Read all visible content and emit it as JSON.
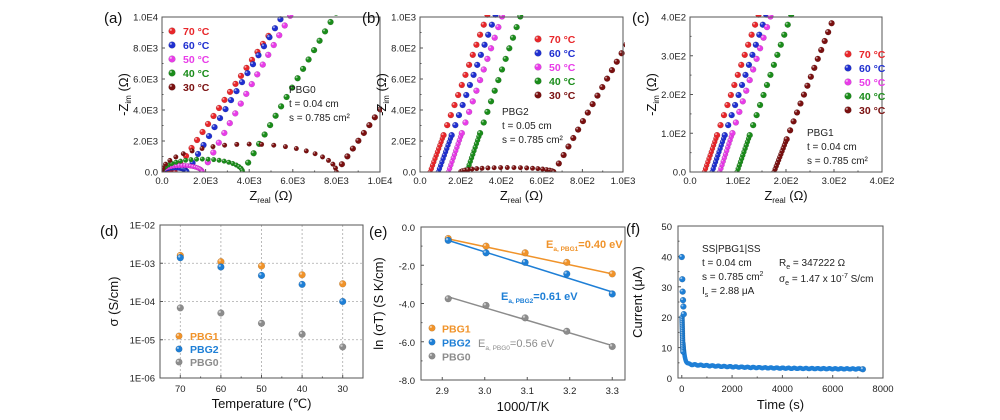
{
  "chart_data": [
    {
      "id": "a",
      "panel_label": "(a)",
      "type": "scatter",
      "title": "",
      "xlabel": "Z",
      "xlabel_sub": "real",
      "xlabel_unit": " (Ω)",
      "ylabel": "-Z",
      "ylabel_sub": "im",
      "ylabel_unit": " (Ω)",
      "xlim": [
        0,
        10000
      ],
      "ylim": [
        0,
        10000
      ],
      "xticks": [
        "0.0",
        "2.0E3",
        "4.0E3",
        "6.0E3",
        "8.0E3",
        "1.0E4"
      ],
      "yticks": [
        "0.0",
        "2.0E3",
        "4.0E3",
        "6.0E3",
        "8.0E3",
        "1.0E4"
      ],
      "legend_position": "top-left",
      "annotation": [
        "PBG0",
        "t = 0.04 cm",
        "s = 0.785 cm²"
      ],
      "series": [
        {
          "name": "70 °C",
          "color": "#e8262a",
          "R0": 0,
          "Rb": 600,
          "slope": 2.05
        },
        {
          "name": "60 °C",
          "color": "#1f2fd0",
          "R0": 0,
          "Rb": 1150,
          "slope": 2.3
        },
        {
          "name": "50 °C",
          "color": "#e83ce8",
          "R0": 0,
          "Rb": 1850,
          "slope": 2.5
        },
        {
          "name": "40 °C",
          "color": "#1a8c1a",
          "R0": 0,
          "Rb": 3700,
          "slope": 2.4
        },
        {
          "name": "30 °C",
          "color": "#7a1010",
          "R0": 0,
          "Rb": 8000,
          "slope": 2.0
        }
      ]
    },
    {
      "id": "b",
      "panel_label": "(b)",
      "type": "scatter",
      "xlabel": "Z",
      "xlabel_sub": "real",
      "xlabel_unit": " (Ω)",
      "ylabel": "-Z",
      "ylabel_sub": "im",
      "ylabel_unit": " (Ω)",
      "xlim": [
        0,
        1000
      ],
      "ylim": [
        0,
        1000
      ],
      "xticks": [
        "0.0",
        "2.0E2",
        "4.0E2",
        "6.0E2",
        "8.0E2",
        "1.0E3"
      ],
      "yticks": [
        "0.0",
        "2.0E2",
        "4.0E2",
        "6.0E2",
        "8.0E2",
        "1.0E3"
      ],
      "legend_position": "top-right",
      "annotation": [
        "PBG2",
        "t = 0.05 cm",
        "s = 0.785 cm²"
      ],
      "series": [
        {
          "name": "70 °C",
          "color": "#e8262a",
          "R0": 50,
          "slope": 3.6
        },
        {
          "name": "60 °C",
          "color": "#1f2fd0",
          "R0": 90,
          "slope": 3.6
        },
        {
          "name": "50 °C",
          "color": "#e83ce8",
          "R0": 140,
          "slope": 3.8
        },
        {
          "name": "40 °C",
          "color": "#1a8c1a",
          "R0": 230,
          "slope": 3.8
        },
        {
          "name": "30 °C",
          "color": "#7a1010",
          "R0": 200,
          "Rb": 660,
          "slope": 2.3
        }
      ]
    },
    {
      "id": "c",
      "panel_label": "(c)",
      "type": "scatter",
      "xlabel": "Z",
      "xlabel_sub": "real",
      "xlabel_unit": " (Ω)",
      "ylabel": "-Z",
      "ylabel_sub": "im",
      "ylabel_unit": " (Ω)",
      "xlim": [
        0,
        400
      ],
      "ylim": [
        0,
        400
      ],
      "xticks": [
        "0.0",
        "1.0E2",
        "2.0E2",
        "3.0E2",
        "4.0E2"
      ],
      "yticks": [
        "0.0",
        "1.0E2",
        "2.0E2",
        "3.0E2",
        "4.0E2"
      ],
      "legend_position": "right",
      "annotation": [
        "PBG1",
        "t = 0.04 cm",
        "s = 0.785 cm²"
      ],
      "series": [
        {
          "name": "70 °C",
          "color": "#e8262a",
          "R0": 30,
          "slope": 3.6
        },
        {
          "name": "60 °C",
          "color": "#1f2fd0",
          "R0": 46,
          "slope": 3.6
        },
        {
          "name": "50 °C",
          "color": "#e83ce8",
          "R0": 62,
          "slope": 3.8
        },
        {
          "name": "40 °C",
          "color": "#1a8c1a",
          "R0": 98,
          "slope": 3.6
        },
        {
          "name": "30 °C",
          "color": "#7a1010",
          "R0": 175,
          "slope": 3.2
        }
      ]
    },
    {
      "id": "d",
      "panel_label": "(d)",
      "type": "scatter",
      "xlabel": "Temperature (℃)",
      "ylabel": "σ (S/cm)",
      "yscale": "log",
      "xlim": [
        75,
        25
      ],
      "ylim": [
        1e-06,
        0.01
      ],
      "xticks": [
        "70",
        "60",
        "50",
        "40",
        "30"
      ],
      "yticks": [
        "1E-06",
        "1E-05",
        "1E-04",
        "1E-03",
        "1E-02"
      ],
      "grid": true,
      "legend_position": "bottom-left",
      "x": [
        70,
        60,
        50,
        40,
        30
      ],
      "series": [
        {
          "name": "PBG1",
          "color": "#f0932a",
          "values": [
            0.0016,
            0.0011,
            0.00085,
            0.0005,
            0.00029
          ]
        },
        {
          "name": "PBG2",
          "color": "#1e7fd6",
          "values": [
            0.0014,
            0.0008,
            0.00048,
            0.00028,
            0.0001
          ]
        },
        {
          "name": "PBG0",
          "color": "#8c8c8c",
          "values": [
            6.8e-05,
            5e-05,
            2.7e-05,
            1.4e-05,
            6.5e-06
          ]
        }
      ]
    },
    {
      "id": "e",
      "panel_label": "(e)",
      "type": "scatter",
      "xlabel": "1000/T/K",
      "ylabel": "ln (σT) (S K/cm)",
      "xlim": [
        2.85,
        3.33
      ],
      "ylim": [
        -8.0,
        0.0
      ],
      "xticks": [
        "2.9",
        "3.0",
        "3.1",
        "3.2",
        "3.3"
      ],
      "yticks": [
        "-8.0",
        "-6.0",
        "-4.0",
        "-2.0",
        "0.0"
      ],
      "legend_position": "bottom-left",
      "x": [
        2.914,
        3.003,
        3.095,
        3.193,
        3.3
      ],
      "series": [
        {
          "name": "PBG1",
          "color": "#f0932a",
          "values": [
            -0.6,
            -1.0,
            -1.35,
            -1.85,
            -2.45
          ],
          "fit": [
            -0.62,
            -2.45
          ],
          "ea_label": "E",
          "ea_sub": "a, PBG1",
          "ea_value": "=0.40 eV"
        },
        {
          "name": "PBG2",
          "color": "#1e7fd6",
          "values": [
            -0.7,
            -1.35,
            -1.85,
            -2.45,
            -3.5
          ],
          "fit": [
            -0.7,
            -3.4
          ],
          "ea_label": "E",
          "ea_sub": "a, PBG2",
          "ea_value": "=0.61 eV"
        },
        {
          "name": "PBG0",
          "color": "#8c8c8c",
          "values": [
            -3.75,
            -4.1,
            -4.75,
            -5.45,
            -6.25
          ],
          "fit": [
            -3.65,
            -6.2
          ],
          "ea_label": "E",
          "ea_sub": "a, PBG0",
          "ea_value": "=0.56 eV"
        }
      ]
    },
    {
      "id": "f",
      "panel_label": "(f)",
      "type": "scatter",
      "xlabel": "Time (s)",
      "ylabel": "Current (μA)",
      "xlim": [
        -150,
        8000
      ],
      "ylim": [
        0,
        50
      ],
      "xticks": [
        "0",
        "2000",
        "4000",
        "6000",
        "8000"
      ],
      "yticks": [
        "0",
        "10",
        "20",
        "30",
        "40",
        "50"
      ],
      "color": "#1e7fd6",
      "initial_points": [
        [
          0,
          39.8
        ],
        [
          20,
          32.5
        ],
        [
          35,
          28.4
        ],
        [
          50,
          25.6
        ],
        [
          65,
          23.5
        ],
        [
          80,
          21.0
        ]
      ],
      "decay": {
        "start": 20,
        "steady": 2.88,
        "end_time": 7200
      },
      "annotation_left": [
        "SS|PBG1|SS",
        "t = 0.04 cm",
        "s = 0.785 cm²",
        "Is = 2.88 μA"
      ],
      "annotation_right": {
        "Re": "R",
        "Re_sub": "e",
        "Re_value": " = 347222 Ω",
        "sigma": "σ",
        "sigma_sub": "e",
        "sigma_value": " = 1.47 x 10",
        "sigma_exp": "-7",
        "sigma_unit": " S/cm"
      },
      "annot_lines": {
        "l1": "SS|PBG1|SS",
        "l2": "t = 0.04 cm",
        "l3": "s = 0.785 cm",
        "l3_sup": "2",
        "l4": "I",
        "l4_sub": "s",
        "l4_val": " = 2.88 μA"
      }
    }
  ]
}
